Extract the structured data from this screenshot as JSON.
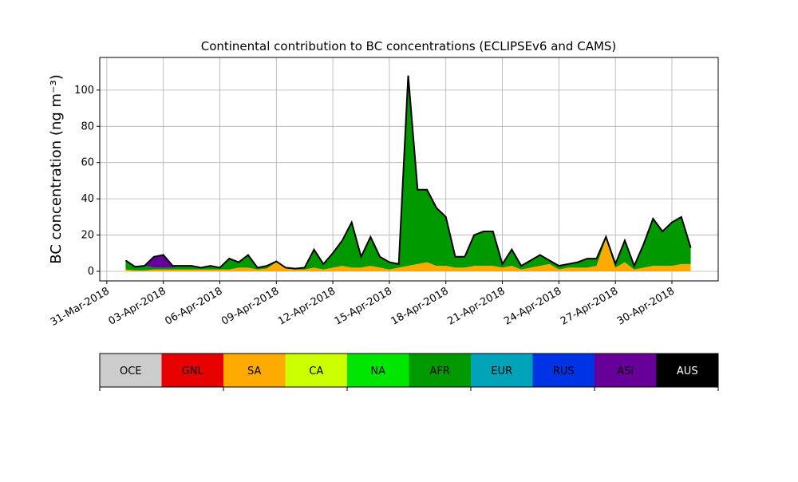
{
  "chart_data": {
    "type": "stacked_area",
    "title": "Continental contribution to BC concentrations (ECLIPSEv6 and CAMS)",
    "ylabel": "BC concentration (ng m⁻³)",
    "x": [
      "2018-04-01 00:00",
      "2018-04-01 12:00",
      "2018-04-02 00:00",
      "2018-04-02 12:00",
      "2018-04-03 00:00",
      "2018-04-03 12:00",
      "2018-04-04 00:00",
      "2018-04-04 12:00",
      "2018-04-05 00:00",
      "2018-04-05 12:00",
      "2018-04-06 00:00",
      "2018-04-06 12:00",
      "2018-04-07 00:00",
      "2018-04-07 12:00",
      "2018-04-08 00:00",
      "2018-04-08 12:00",
      "2018-04-09 00:00",
      "2018-04-09 12:00",
      "2018-04-10 00:00",
      "2018-04-10 12:00",
      "2018-04-11 00:00",
      "2018-04-11 12:00",
      "2018-04-12 00:00",
      "2018-04-12 12:00",
      "2018-04-13 00:00",
      "2018-04-13 12:00",
      "2018-04-14 00:00",
      "2018-04-14 12:00",
      "2018-04-15 00:00",
      "2018-04-15 12:00",
      "2018-04-16 00:00",
      "2018-04-16 12:00",
      "2018-04-17 00:00",
      "2018-04-17 12:00",
      "2018-04-18 00:00",
      "2018-04-18 12:00",
      "2018-04-19 00:00",
      "2018-04-19 12:00",
      "2018-04-20 00:00",
      "2018-04-20 12:00",
      "2018-04-21 00:00",
      "2018-04-21 12:00",
      "2018-04-22 00:00",
      "2018-04-22 12:00",
      "2018-04-23 00:00",
      "2018-04-23 12:00",
      "2018-04-24 00:00",
      "2018-04-24 12:00",
      "2018-04-25 00:00",
      "2018-04-25 12:00",
      "2018-04-26 00:00",
      "2018-04-26 12:00",
      "2018-04-27 00:00",
      "2018-04-27 12:00",
      "2018-04-28 00:00",
      "2018-04-28 12:00",
      "2018-04-29 00:00",
      "2018-04-29 12:00",
      "2018-04-30 00:00",
      "2018-04-30 12:00",
      "2018-05-01 00:00"
    ],
    "series": [
      {
        "name": "SA",
        "color": "#ffaa00",
        "values": [
          1,
          0.5,
          0.5,
          1,
          1,
          1,
          1,
          1,
          1,
          1,
          1,
          1,
          2,
          2,
          1,
          1.5,
          5,
          1.5,
          1,
          1,
          2,
          1,
          2,
          3,
          2,
          2,
          3,
          2,
          1,
          2,
          3,
          4,
          5,
          3,
          3,
          2,
          2,
          3,
          3,
          3,
          2,
          3,
          1,
          2,
          3,
          4,
          1,
          2,
          2,
          2,
          3,
          18,
          2,
          5,
          1,
          2,
          3,
          3,
          3,
          4,
          4
        ]
      },
      {
        "name": "AFR",
        "color": "#009900",
        "values": [
          5,
          2,
          2.5,
          1,
          1,
          1,
          2,
          2,
          1,
          2,
          1,
          6,
          3,
          7,
          1,
          1.5,
          0.5,
          0.5,
          0.5,
          1,
          10,
          3,
          8,
          14,
          25,
          6,
          16,
          6,
          4,
          2,
          105,
          41,
          40,
          32,
          27,
          6,
          6,
          17,
          19,
          19,
          1,
          9,
          2,
          4,
          6,
          2,
          2,
          2,
          3,
          5,
          4,
          1,
          2,
          12,
          2,
          13,
          26,
          19,
          24,
          26,
          9
        ]
      },
      {
        "name": "ASI",
        "color": "#660099",
        "values": [
          0,
          0,
          0,
          6,
          7,
          1,
          0,
          0,
          0,
          0,
          0,
          0,
          0,
          0,
          0,
          0,
          0,
          0,
          0,
          0,
          0,
          0,
          0,
          0,
          0,
          0,
          0,
          0,
          0,
          0,
          0,
          0,
          0,
          0,
          0,
          0,
          0,
          0,
          0,
          0,
          1,
          0,
          0,
          0,
          0,
          0,
          0,
          0,
          0,
          0,
          0,
          0,
          0,
          0,
          0,
          0,
          0,
          0,
          0,
          0,
          0
        ]
      }
    ],
    "legend": [
      {
        "name": "OCE",
        "color": "#cccccc"
      },
      {
        "name": "GNL",
        "color": "#e60000"
      },
      {
        "name": "SA",
        "color": "#ffaa00"
      },
      {
        "name": "CA",
        "color": "#ccff00"
      },
      {
        "name": "NA",
        "color": "#00e600"
      },
      {
        "name": "AFR",
        "color": "#009900"
      },
      {
        "name": "EUR",
        "color": "#00a3b8"
      },
      {
        "name": "RUS",
        "color": "#0033e6"
      },
      {
        "name": "ASI",
        "color": "#660099"
      },
      {
        "name": "AUS",
        "color": "#000000"
      }
    ],
    "xlim": [
      "2018-03-30 15:00",
      "2018-05-02 11:00"
    ],
    "xticks": [
      {
        "value": "2018-03-31 00:00",
        "label": "31-Mar-2018"
      },
      {
        "value": "2018-04-03 00:00",
        "label": "03-Apr-2018"
      },
      {
        "value": "2018-04-06 00:00",
        "label": "06-Apr-2018"
      },
      {
        "value": "2018-04-09 00:00",
        "label": "09-Apr-2018"
      },
      {
        "value": "2018-04-12 00:00",
        "label": "12-Apr-2018"
      },
      {
        "value": "2018-04-15 00:00",
        "label": "15-Apr-2018"
      },
      {
        "value": "2018-04-18 00:00",
        "label": "18-Apr-2018"
      },
      {
        "value": "2018-04-21 00:00",
        "label": "21-Apr-2018"
      },
      {
        "value": "2018-04-24 00:00",
        "label": "24-Apr-2018"
      },
      {
        "value": "2018-04-27 00:00",
        "label": "27-Apr-2018"
      },
      {
        "value": "2018-04-30 00:00",
        "label": "30-Apr-2018"
      }
    ],
    "ylim": [
      -5.3,
      118
    ],
    "yticks": [
      0,
      20,
      40,
      60,
      80,
      100
    ],
    "grid": true
  }
}
